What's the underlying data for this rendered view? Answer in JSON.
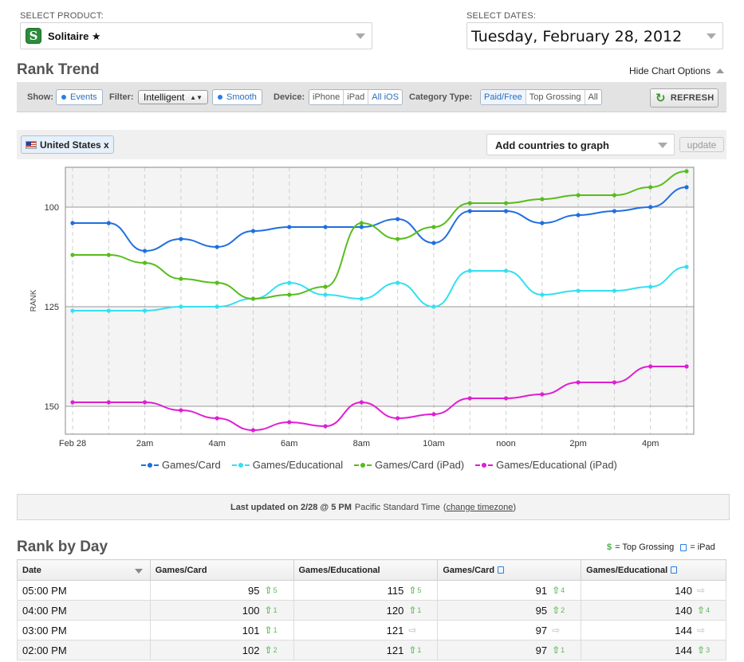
{
  "product": {
    "label": "SELECT PRODUCT:",
    "value": "Solitaire ★",
    "icon_letter": "S"
  },
  "dates": {
    "label": "SELECT DATES:",
    "value": "Tuesday, February 28, 2012"
  },
  "rank_trend": {
    "title": "Rank Trend",
    "hide_options": "Hide Chart Options",
    "toolbar": {
      "show_label": "Show:",
      "events": "Events",
      "filter_label": "Filter:",
      "filter_value": "Intelligent",
      "smooth": "Smooth",
      "device_label": "Device:",
      "devices": [
        "iPhone",
        "iPad",
        "All iOS"
      ],
      "category_label": "Category Type:",
      "categories": [
        "Paid/Free",
        "Top Grossing",
        "All"
      ],
      "refresh": "REFRESH"
    },
    "country_tag": "United States x",
    "add_countries": "Add countries to graph",
    "update": "update",
    "last_updated": {
      "prefix": "Last updated on 2/28 @ 5 PM",
      "tz": "Pacific Standard Time",
      "open": "(",
      "link": "change timezone",
      "close": ")"
    }
  },
  "chart_data": {
    "type": "line",
    "ylabel": "RANK",
    "y_inverted": true,
    "ylim": [
      90,
      157
    ],
    "y_ticks": [
      100,
      125,
      150
    ],
    "x_tick_labels": [
      "Feb 28",
      "2am",
      "4am",
      "6am",
      "8am",
      "10am",
      "noon",
      "2pm",
      "4pm"
    ],
    "x": [
      "0:00",
      "1:00",
      "2:00",
      "3:00",
      "4:00",
      "5:00",
      "6:00",
      "7:00",
      "8:00",
      "9:00",
      "10:00",
      "11:00",
      "12:00",
      "13:00",
      "14:00",
      "15:00",
      "16:00",
      "17:00"
    ],
    "series": [
      {
        "name": "Games/Card",
        "color": "#1f6fe0",
        "values": [
          104,
          104,
          111,
          108,
          110,
          106,
          105,
          105,
          105,
          103,
          109,
          101,
          101,
          104,
          102,
          101,
          100,
          95
        ]
      },
      {
        "name": "Games/Educational",
        "color": "#33e0f2",
        "values": [
          126,
          126,
          126,
          125,
          125,
          123,
          119,
          122,
          123,
          119,
          125,
          116,
          116,
          122,
          121,
          121,
          120,
          115
        ]
      },
      {
        "name": "Games/Card (iPad)",
        "color": "#58bd1c",
        "values": [
          112,
          112,
          114,
          118,
          119,
          123,
          122,
          120,
          104,
          108,
          105,
          99,
          99,
          98,
          97,
          97,
          95,
          91
        ]
      },
      {
        "name": "Games/Educational (iPad)",
        "color": "#e01ed4",
        "values": [
          149,
          149,
          149,
          151,
          153,
          156,
          154,
          155,
          149,
          153,
          152,
          148,
          148,
          147,
          144,
          144,
          140,
          140
        ]
      }
    ]
  },
  "rank_by_day": {
    "title": "Rank by Day",
    "key_dollar": "$",
    "key_top_grossing": "= Top Grossing",
    "key_ipad": "= iPad",
    "columns": [
      "Date",
      "Games/Card",
      "Games/Educational",
      "Games/Card",
      "Games/Educational"
    ],
    "rows": [
      {
        "date": "05:00 PM",
        "cells": [
          {
            "v": "95",
            "d": "5"
          },
          {
            "v": "115",
            "d": "5"
          },
          {
            "v": "91",
            "d": "4"
          },
          {
            "v": "140",
            "d": ""
          }
        ]
      },
      {
        "date": "04:00 PM",
        "cells": [
          {
            "v": "100",
            "d": "1"
          },
          {
            "v": "120",
            "d": "1"
          },
          {
            "v": "95",
            "d": "2"
          },
          {
            "v": "140",
            "d": "4"
          }
        ]
      },
      {
        "date": "03:00 PM",
        "cells": [
          {
            "v": "101",
            "d": "1"
          },
          {
            "v": "121",
            "d": ""
          },
          {
            "v": "97",
            "d": ""
          },
          {
            "v": "144",
            "d": ""
          }
        ]
      },
      {
        "date": "02:00 PM",
        "cells": [
          {
            "v": "102",
            "d": "2"
          },
          {
            "v": "121",
            "d": "1"
          },
          {
            "v": "97",
            "d": "1"
          },
          {
            "v": "144",
            "d": "3"
          }
        ]
      }
    ]
  }
}
